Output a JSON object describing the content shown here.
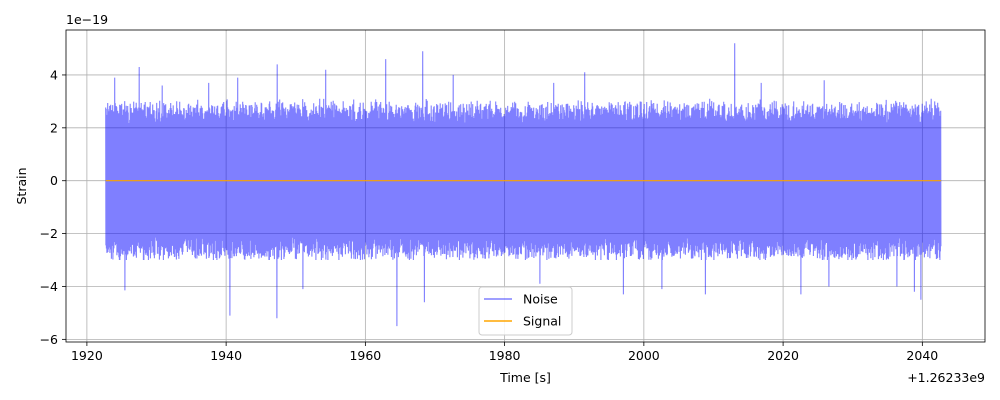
{
  "chart_data": {
    "type": "line",
    "xlabel": "Time [s]",
    "ylabel": "Strain",
    "x_offset_text": "+1.26233e9",
    "y_scale_text": "1e−19",
    "xlim": [
      1917,
      2049
    ],
    "ylim": [
      -6.1,
      5.7
    ],
    "xticks": [
      1920,
      1940,
      1960,
      1980,
      2000,
      2020,
      2040
    ],
    "yticks": [
      -6,
      -4,
      -2,
      0,
      2,
      4
    ],
    "grid": true,
    "legend_position": "bottom-center",
    "series": [
      {
        "name": "Noise",
        "color": "#0000ff",
        "x_range": [
          1922.7,
          2042.7
        ],
        "typical_band": [
          -3.0,
          3.1
        ],
        "spikes": [
          {
            "x": 1924.0,
            "y": 3.9
          },
          {
            "x": 1925.4,
            "y": -4.15
          },
          {
            "x": 1927.5,
            "y": 4.3
          },
          {
            "x": 1930.8,
            "y": 3.6
          },
          {
            "x": 1937.5,
            "y": 3.7
          },
          {
            "x": 1940.5,
            "y": -5.1
          },
          {
            "x": 1941.6,
            "y": 3.9
          },
          {
            "x": 1947.2,
            "y": -5.2
          },
          {
            "x": 1947.3,
            "y": 4.4
          },
          {
            "x": 1951.0,
            "y": -4.1
          },
          {
            "x": 1954.3,
            "y": 4.2
          },
          {
            "x": 1962.9,
            "y": 4.6
          },
          {
            "x": 1964.5,
            "y": -5.5
          },
          {
            "x": 1968.2,
            "y": 4.9
          },
          {
            "x": 1968.4,
            "y": -4.6
          },
          {
            "x": 1972.6,
            "y": 4.0
          },
          {
            "x": 1985.0,
            "y": -3.9
          },
          {
            "x": 1987.0,
            "y": 3.7
          },
          {
            "x": 1991.5,
            "y": 4.1
          },
          {
            "x": 1997.0,
            "y": -4.3
          },
          {
            "x": 2002.5,
            "y": -4.1
          },
          {
            "x": 2008.8,
            "y": -4.3
          },
          {
            "x": 2013.0,
            "y": 5.2
          },
          {
            "x": 2016.8,
            "y": 3.7
          },
          {
            "x": 2022.5,
            "y": -4.3
          },
          {
            "x": 2025.9,
            "y": 3.8
          },
          {
            "x": 2026.5,
            "y": -4.0
          },
          {
            "x": 2036.3,
            "y": -4.0
          },
          {
            "x": 2038.8,
            "y": -4.2
          },
          {
            "x": 2039.7,
            "y": -4.5
          },
          {
            "x": 2040.5,
            "y": 3.0
          }
        ]
      },
      {
        "name": "Signal",
        "color": "#ffa500",
        "x": [
          1922.7,
          2042.7
        ],
        "y": [
          0,
          0
        ]
      }
    ]
  }
}
